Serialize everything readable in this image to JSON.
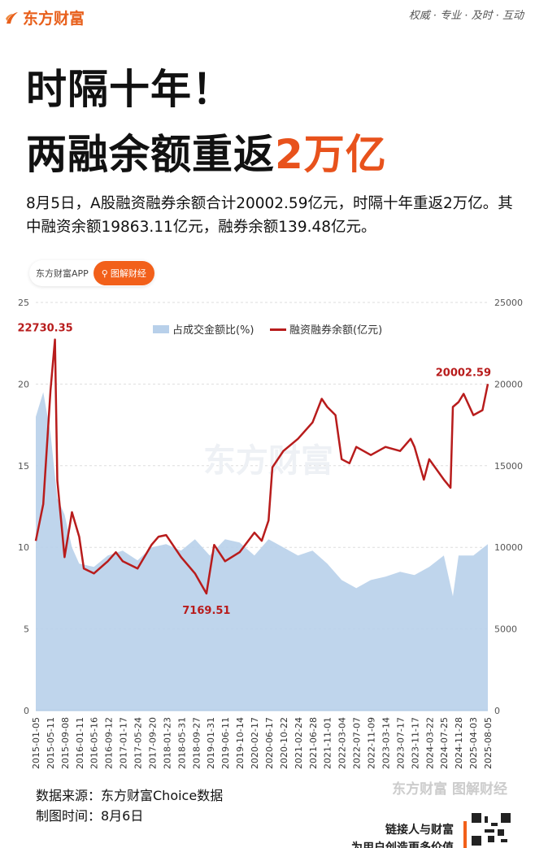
{
  "header": {
    "brand": "东方财富",
    "slogan": "权威 · 专业 · 及时 · 互动"
  },
  "title": {
    "line1": "时隔十年！",
    "line2_prefix": "两融余额重返",
    "line2_accent": "2万亿"
  },
  "description": "8月5日，A股融资融券余额合计20002.59亿元，时隔十年重返2万亿。其中融资余额19863.11亿元，融券余额139.48亿元。",
  "pill": {
    "app": "东方财富APP",
    "button": "图解财经",
    "icon": "search-icon"
  },
  "colors": {
    "accent": "#e8521c",
    "line": "#b81c1c",
    "area": "#b8d0ea"
  },
  "chart_data": {
    "type": "area+line",
    "watermark": "东方财富",
    "y_left": {
      "range": [
        0,
        25
      ],
      "ticks": [
        "0",
        "5",
        "10",
        "15",
        "20",
        "25"
      ]
    },
    "y_right": {
      "range": [
        0,
        25000
      ],
      "ticks": [
        "0",
        "5000",
        "10000",
        "15000",
        "20000",
        "25000"
      ]
    },
    "x_ticks": [
      "2015-01-05",
      "2015-05-11",
      "2015-09-08",
      "2016-01-11",
      "2016-05-16",
      "2016-09-12",
      "2017-01-17",
      "2017-05-24",
      "2017-09-20",
      "2018-01-23",
      "2018-05-31",
      "2018-09-27",
      "2019-01-31",
      "2019-06-11",
      "2019-10-14",
      "2020-02-17",
      "2020-06-17",
      "2020-10-22",
      "2021-02-24",
      "2021-06-28",
      "2021-11-01",
      "2022-03-04",
      "2022-07-07",
      "2022-11-09",
      "2023-03-14",
      "2023-07-17",
      "2023-11-17",
      "2024-03-22",
      "2024-07-25",
      "2024-11-28",
      "2025-04-03",
      "2025-08-05"
    ],
    "legend": "top-center",
    "annotations": [
      {
        "text": "22730.35",
        "date": "2015-06-18",
        "value": 22730.35
      },
      {
        "text": "7169.51",
        "date": "2019-01-03",
        "value": 7169.51
      },
      {
        "text": "20002.59",
        "date": "2025-08-05",
        "value": 20002.59
      }
    ],
    "series": [
      {
        "name": "占成交金额比(%)",
        "axis": "left",
        "type": "area",
        "points": [
          [
            "2015-01-05",
            18
          ],
          [
            "2015-03-10",
            19.5
          ],
          [
            "2015-05-11",
            17
          ],
          [
            "2015-07-08",
            13
          ],
          [
            "2015-09-08",
            12
          ],
          [
            "2015-11-10",
            10
          ],
          [
            "2016-01-11",
            9
          ],
          [
            "2016-05-16",
            8.8
          ],
          [
            "2016-09-12",
            9.5
          ],
          [
            "2017-01-17",
            9.8
          ],
          [
            "2017-05-24",
            9.2
          ],
          [
            "2017-09-20",
            10
          ],
          [
            "2018-01-23",
            10.2
          ],
          [
            "2018-05-31",
            9.8
          ],
          [
            "2018-09-27",
            10.5
          ],
          [
            "2019-01-31",
            9.5
          ],
          [
            "2019-06-11",
            10.5
          ],
          [
            "2019-10-14",
            10.3
          ],
          [
            "2020-02-17",
            9.5
          ],
          [
            "2020-06-17",
            10.5
          ],
          [
            "2020-10-22",
            10
          ],
          [
            "2021-02-24",
            9.5
          ],
          [
            "2021-06-28",
            9.8
          ],
          [
            "2021-11-01",
            9
          ],
          [
            "2022-03-04",
            8
          ],
          [
            "2022-07-07",
            7.5
          ],
          [
            "2022-11-09",
            8
          ],
          [
            "2023-03-14",
            8.2
          ],
          [
            "2023-07-17",
            8.5
          ],
          [
            "2023-11-17",
            8.3
          ],
          [
            "2024-03-22",
            8.8
          ],
          [
            "2024-07-25",
            9.5
          ],
          [
            "2024-10-10",
            7
          ],
          [
            "2024-11-28",
            9.5
          ],
          [
            "2025-04-03",
            9.5
          ],
          [
            "2025-08-05",
            10.2
          ]
        ]
      },
      {
        "name": "融资融券余额(亿元)",
        "axis": "right",
        "type": "line",
        "points": [
          [
            "2015-01-05",
            10400
          ],
          [
            "2015-03-10",
            12650
          ],
          [
            "2015-05-11",
            19600
          ],
          [
            "2015-06-18",
            22730.35
          ],
          [
            "2015-07-08",
            14100
          ],
          [
            "2015-09-08",
            9400
          ],
          [
            "2015-11-10",
            12150
          ],
          [
            "2016-01-11",
            10650
          ],
          [
            "2016-02-20",
            8700
          ],
          [
            "2016-05-16",
            8400
          ],
          [
            "2016-09-12",
            9150
          ],
          [
            "2016-11-20",
            9700
          ],
          [
            "2017-01-17",
            9150
          ],
          [
            "2017-05-24",
            8700
          ],
          [
            "2017-09-20",
            10150
          ],
          [
            "2017-11-20",
            10650
          ],
          [
            "2018-01-23",
            10750
          ],
          [
            "2018-05-31",
            9400
          ],
          [
            "2018-09-27",
            8400
          ],
          [
            "2019-01-03",
            7169.51
          ],
          [
            "2019-03-10",
            10150
          ],
          [
            "2019-06-11",
            9150
          ],
          [
            "2019-10-14",
            9700
          ],
          [
            "2020-02-17",
            10900
          ],
          [
            "2020-04-20",
            10400
          ],
          [
            "2020-06-17",
            11650
          ],
          [
            "2020-07-20",
            14900
          ],
          [
            "2020-10-22",
            15900
          ],
          [
            "2021-02-24",
            16650
          ],
          [
            "2021-06-28",
            17650
          ],
          [
            "2021-09-15",
            19100
          ],
          [
            "2021-11-01",
            18600
          ],
          [
            "2022-01-10",
            18100
          ],
          [
            "2022-03-04",
            15400
          ],
          [
            "2022-05-10",
            15150
          ],
          [
            "2022-07-07",
            16150
          ],
          [
            "2022-11-09",
            15650
          ],
          [
            "2023-03-14",
            16150
          ],
          [
            "2023-07-17",
            15900
          ],
          [
            "2023-10-15",
            16650
          ],
          [
            "2023-11-17",
            16150
          ],
          [
            "2024-02-05",
            14150
          ],
          [
            "2024-03-22",
            15400
          ],
          [
            "2024-07-25",
            14150
          ],
          [
            "2024-09-20",
            13650
          ],
          [
            "2024-10-10",
            18600
          ],
          [
            "2024-11-28",
            18900
          ],
          [
            "2025-01-10",
            19400
          ],
          [
            "2025-04-03",
            18100
          ],
          [
            "2025-06-20",
            18400
          ],
          [
            "2025-08-05",
            20002.59
          ]
        ]
      }
    ]
  },
  "footer": {
    "source": "数据来源：东方财富Choice数据",
    "date": "制图时间：8月6日",
    "watermark": "东方财富 图解财经",
    "tag1": "链接人与财富",
    "tag2": "为用户创造更多价值"
  }
}
